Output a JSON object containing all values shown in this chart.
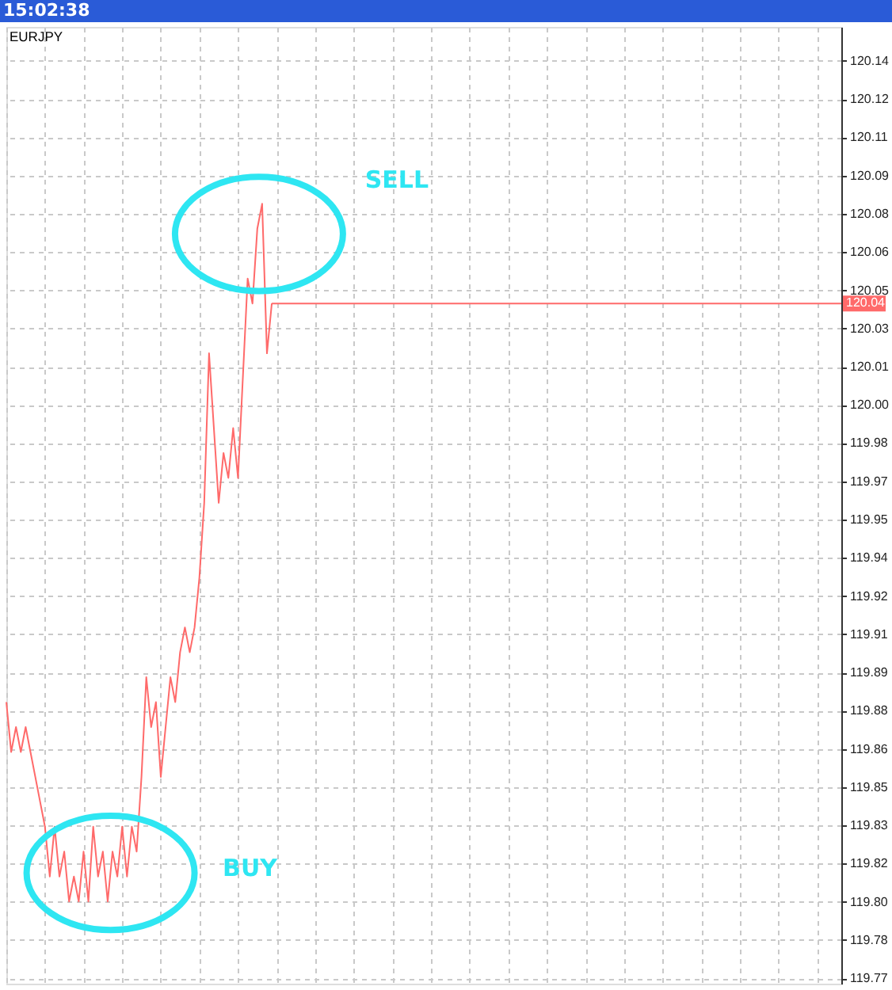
{
  "chart_data": {
    "type": "line",
    "title": "15:02:38",
    "subtitle": "EURJPY",
    "categories": [
      null,
      null,
      null,
      null,
      null,
      null,
      null,
      null,
      null,
      null,
      null,
      null,
      null,
      null,
      null,
      null,
      null,
      null,
      null,
      null,
      null,
      null,
      null,
      null,
      null,
      null,
      null,
      null,
      null,
      null,
      null,
      null,
      null,
      null,
      null,
      null,
      null,
      null,
      null,
      null,
      null,
      null,
      null,
      null,
      null,
      null,
      null,
      null,
      null,
      null,
      null,
      null,
      null,
      null,
      null,
      null,
      null,
      null,
      null,
      null,
      null,
      null,
      null,
      null,
      null,
      null,
      null,
      null,
      null,
      null,
      null,
      null,
      null,
      null,
      null,
      null,
      null,
      null,
      null,
      null,
      null,
      null,
      null,
      null,
      null,
      null,
      null,
      null,
      null,
      null,
      null,
      null,
      null,
      null,
      null,
      null,
      null,
      null,
      null,
      null,
      null,
      null,
      null,
      null,
      null,
      null,
      null,
      null,
      null,
      null,
      null,
      null,
      null,
      null,
      null,
      null,
      null,
      null,
      null,
      null,
      null,
      null,
      null,
      null,
      null,
      null,
      null,
      null,
      null,
      null,
      null,
      null,
      null,
      null,
      null,
      null,
      null,
      null,
      null,
      null,
      null,
      null,
      null,
      null,
      null,
      null,
      null,
      null,
      null,
      null,
      null,
      null,
      null,
      null,
      null,
      null,
      null,
      null,
      null,
      null,
      null,
      null,
      null,
      null,
      null,
      null,
      null,
      null,
      null,
      null,
      null,
      null,
      null,
      null
    ],
    "series": [
      {
        "color": "#ff6a6a",
        "values": [
          119.88,
          119.86,
          119.87,
          119.86,
          119.87,
          119.86,
          119.85,
          119.84,
          119.83,
          119.81,
          119.83,
          119.81,
          119.82,
          119.8,
          119.81,
          119.8,
          119.82,
          119.8,
          119.83,
          119.81,
          119.82,
          119.8,
          119.82,
          119.81,
          119.83,
          119.81,
          119.83,
          119.82,
          119.85,
          119.89,
          119.87,
          119.88,
          119.85,
          119.87,
          119.89,
          119.88,
          119.9,
          119.91,
          119.9,
          119.91,
          119.93,
          119.96,
          120.02,
          119.99,
          119.96,
          119.98,
          119.97,
          119.99,
          119.97,
          120.01,
          120.05,
          120.04,
          120.07,
          120.08,
          120.02,
          120.04,
          null,
          null,
          null,
          null,
          null,
          null,
          null,
          null,
          null,
          null,
          null,
          null,
          null,
          null,
          null,
          null,
          null,
          null,
          null,
          null,
          null,
          null,
          null,
          null,
          null,
          null,
          null,
          null,
          null,
          null,
          null,
          null,
          null,
          null,
          null,
          null,
          null,
          null,
          null,
          null,
          null,
          null,
          null,
          null,
          null,
          null,
          null,
          null,
          null,
          null,
          null,
          null,
          null,
          null,
          null,
          null,
          null,
          null,
          null,
          null,
          null,
          null,
          null,
          null,
          null,
          null,
          null,
          null,
          null,
          null,
          null,
          null,
          null,
          null,
          null,
          null,
          null,
          null,
          null,
          null,
          null,
          null,
          null,
          null,
          null,
          null,
          null,
          null,
          null,
          null,
          null,
          null,
          null,
          null,
          null,
          null,
          null,
          null,
          null,
          null,
          null,
          null,
          null,
          null,
          null,
          null,
          null,
          null,
          null,
          null,
          null,
          null,
          null,
          null,
          null,
          null,
          null,
          null
        ]
      }
    ],
    "ylim": [
      119.767,
      120.151
    ],
    "yticks": [
      {
        "value": 119.7692,
        "label": "119.77"
      },
      {
        "value": 119.7845,
        "label": "119.78"
      },
      {
        "value": 119.7999,
        "label": "119.80"
      },
      {
        "value": 119.8152,
        "label": "119.82"
      },
      {
        "value": 119.8306,
        "label": "119.83"
      },
      {
        "value": 119.8459,
        "label": "119.85"
      },
      {
        "value": 119.8612,
        "label": "119.86"
      },
      {
        "value": 119.8766,
        "label": "119.88"
      },
      {
        "value": 119.8919,
        "label": "119.89"
      },
      {
        "value": 119.9073,
        "label": "119.91"
      },
      {
        "value": 119.9226,
        "label": "119.92"
      },
      {
        "value": 119.9379,
        "label": "119.94"
      },
      {
        "value": 119.9533,
        "label": "119.95"
      },
      {
        "value": 119.9686,
        "label": "119.97"
      },
      {
        "value": 119.984,
        "label": "119.98"
      },
      {
        "value": 119.9993,
        "label": "120.00"
      },
      {
        "value": 120.0146,
        "label": "120.01"
      },
      {
        "value": 120.03,
        "label": "120.03"
      },
      {
        "value": 120.0453,
        "label": "120.05"
      },
      {
        "value": 120.0607,
        "label": "120.06"
      },
      {
        "value": 120.076,
        "label": "120.08"
      },
      {
        "value": 120.0913,
        "label": "120.09"
      },
      {
        "value": 120.1067,
        "label": "120.11"
      },
      {
        "value": 120.122,
        "label": "120.12"
      },
      {
        "value": 120.1374,
        "label": "120.14"
      }
    ],
    "grid": true,
    "tick_labels": "y",
    "ref_lines": [
      {
        "axis": "y",
        "value": 120.04,
        "label": "120.04",
        "color": "#ff6a6a"
      }
    ],
    "annotations": [
      "SELL",
      "BUY"
    ]
  }
}
